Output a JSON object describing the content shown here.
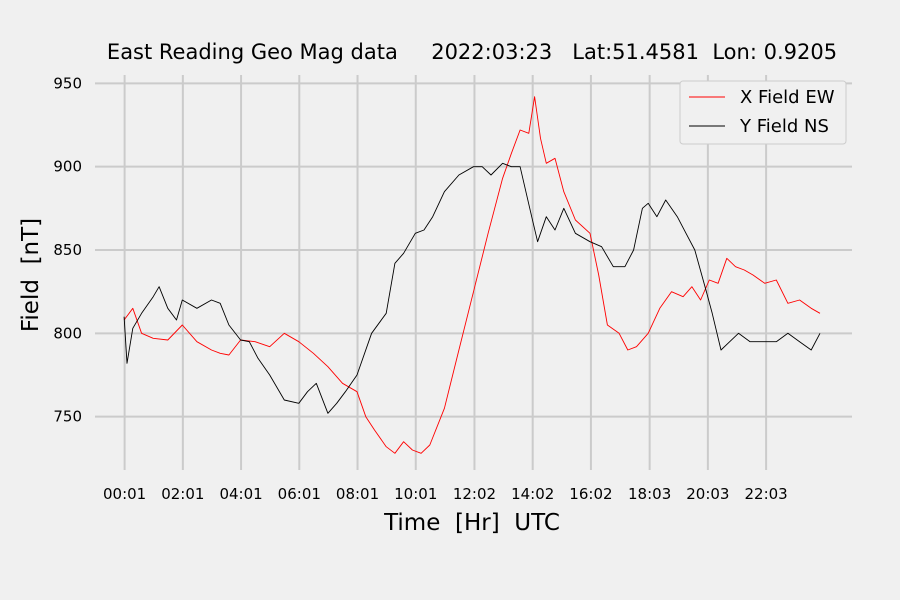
{
  "chart_data": {
    "type": "line",
    "title": "East Reading Geo Mag data     2022:03:23   Lat:51.4581  Lon: 0.9205",
    "xlabel": "Time  [Hr]  UTC",
    "ylabel": "Field  [nT]",
    "x_tick_labels": [
      "00:01",
      "02:01",
      "04:01",
      "06:01",
      "08:01",
      "10:01",
      "12:02",
      "14:02",
      "16:02",
      "18:03",
      "20:03",
      "22:03"
    ],
    "x_tick_hours": [
      0.017,
      2.017,
      4.017,
      6.017,
      8.017,
      10.017,
      12.033,
      14.033,
      16.033,
      18.05,
      20.05,
      22.05
    ],
    "xlim": [
      -1.0,
      25.0
    ],
    "ylim": [
      718,
      955
    ],
    "yticks": [
      750,
      800,
      850,
      900,
      950
    ],
    "grid": true,
    "legend_position": "top-right",
    "series": [
      {
        "name": "X Field EW",
        "color": "#ff0000",
        "x": [
          0.0,
          0.3,
          0.6,
          1.0,
          1.5,
          2.0,
          2.5,
          3.0,
          3.3,
          3.6,
          4.0,
          4.5,
          5.0,
          5.5,
          6.0,
          6.5,
          7.0,
          7.5,
          8.0,
          8.3,
          8.6,
          9.0,
          9.3,
          9.6,
          9.9,
          10.2,
          10.5,
          11.0,
          11.5,
          12.0,
          12.5,
          13.0,
          13.3,
          13.6,
          13.9,
          14.1,
          14.3,
          14.5,
          14.8,
          15.1,
          15.5,
          16.0,
          16.3,
          16.6,
          17.0,
          17.3,
          17.6,
          18.0,
          18.4,
          18.8,
          19.2,
          19.5,
          19.8,
          20.1,
          20.4,
          20.7,
          21.0,
          21.3,
          21.6,
          22.0,
          22.4,
          22.8,
          23.2,
          23.6,
          23.9
        ],
        "y": [
          808,
          815,
          800,
          797,
          796,
          805,
          795,
          790,
          788,
          787,
          796,
          795,
          792,
          800,
          795,
          788,
          780,
          770,
          765,
          750,
          742,
          732,
          728,
          735,
          730,
          728,
          733,
          755,
          790,
          825,
          860,
          893,
          908,
          922,
          920,
          942,
          917,
          902,
          905,
          885,
          868,
          860,
          835,
          805,
          800,
          790,
          792,
          800,
          815,
          825,
          822,
          828,
          820,
          832,
          830,
          845,
          840,
          838,
          835,
          830,
          832,
          818,
          820,
          815,
          812
        ]
      },
      {
        "name": "Y Field NS",
        "color": "#000000",
        "x": [
          0.0,
          0.1,
          0.3,
          0.6,
          1.0,
          1.2,
          1.5,
          1.8,
          2.0,
          2.5,
          3.0,
          3.3,
          3.6,
          4.0,
          4.3,
          4.6,
          5.0,
          5.5,
          6.0,
          6.3,
          6.6,
          7.0,
          7.3,
          7.6,
          8.0,
          8.5,
          9.0,
          9.3,
          9.6,
          10.0,
          10.3,
          10.6,
          11.0,
          11.5,
          12.0,
          12.3,
          12.6,
          13.0,
          13.3,
          13.6,
          14.0,
          14.2,
          14.5,
          14.8,
          15.1,
          15.5,
          16.0,
          16.4,
          16.8,
          17.2,
          17.5,
          17.8,
          18.0,
          18.3,
          18.6,
          19.0,
          19.3,
          19.6,
          20.0,
          20.2,
          20.5,
          20.8,
          21.1,
          21.5,
          22.0,
          22.4,
          22.8,
          23.2,
          23.6,
          23.9
        ],
        "y": [
          810,
          782,
          803,
          812,
          822,
          828,
          815,
          808,
          820,
          815,
          820,
          818,
          805,
          796,
          795,
          785,
          775,
          760,
          758,
          765,
          770,
          752,
          758,
          765,
          775,
          800,
          812,
          842,
          848,
          860,
          862,
          870,
          885,
          895,
          900,
          900,
          895,
          902,
          900,
          900,
          870,
          855,
          870,
          862,
          875,
          860,
          855,
          852,
          840,
          840,
          850,
          875,
          878,
          870,
          880,
          870,
          860,
          850,
          825,
          812,
          790,
          795,
          800,
          795,
          795,
          795,
          800,
          795,
          790,
          800
        ]
      }
    ]
  }
}
